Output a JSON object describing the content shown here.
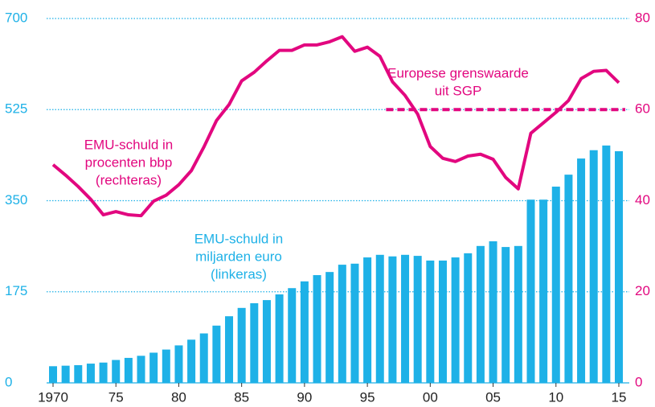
{
  "chart_data": {
    "type": "bar",
    "x": [
      1970,
      1971,
      1972,
      1973,
      1974,
      1975,
      1976,
      1977,
      1978,
      1979,
      1980,
      1981,
      1982,
      1983,
      1984,
      1985,
      1986,
      1987,
      1988,
      1989,
      1990,
      1991,
      1992,
      1993,
      1994,
      1995,
      1996,
      1997,
      1998,
      1999,
      2000,
      2001,
      2002,
      2003,
      2004,
      2005,
      2006,
      2007,
      2008,
      2009,
      2010,
      2011,
      2012,
      2013,
      2014,
      2015
    ],
    "xlim": [
      1969,
      2016
    ],
    "xticks": [
      1970,
      {
        "value": 1975,
        "label": "75"
      },
      {
        "value": 1980,
        "label": "80"
      },
      {
        "value": 1985,
        "label": "85"
      },
      {
        "value": 1990,
        "label": "90"
      },
      {
        "value": 1995,
        "label": "95"
      },
      {
        "value": 2000,
        "label": "00"
      },
      {
        "value": 2005,
        "label": "05"
      },
      {
        "value": 2010,
        "label": "10"
      },
      {
        "value": 2015,
        "label": "15"
      }
    ],
    "ylim": [
      0,
      700
    ],
    "yticks": [
      0,
      175,
      350,
      525,
      700
    ],
    "y2lim": [
      0,
      80
    ],
    "y2ticks": [
      0,
      20,
      40,
      60,
      80
    ],
    "grid": true,
    "series": [
      {
        "type": "bar",
        "color": "#1eb1e7",
        "axis": "y",
        "values": [
          32,
          33,
          34,
          37,
          39,
          44,
          48,
          52,
          58,
          64,
          72,
          83,
          95,
          110,
          128,
          144,
          153,
          159,
          170,
          182,
          195,
          207,
          213,
          227,
          229,
          241,
          246,
          243,
          246,
          244,
          235,
          235,
          241,
          249,
          263,
          272,
          261,
          263,
          352,
          352,
          377,
          400,
          431,
          447,
          456,
          445
        ]
      },
      {
        "type": "line",
        "color": "#e2077f",
        "axis": "y2",
        "values": [
          47.9,
          45.6,
          43.1,
          40.3,
          36.9,
          37.6,
          36.9,
          36.7,
          39.9,
          41.2,
          43.5,
          46.6,
          51.8,
          57.6,
          61.1,
          66.3,
          68.2,
          70.7,
          73.0,
          73.0,
          74.2,
          74.2,
          74.9,
          76.0,
          72.8,
          73.7,
          71.7,
          66.1,
          63.1,
          59.0,
          51.9,
          49.3,
          48.6,
          49.8,
          50.2,
          49.1,
          45.1,
          42.6,
          54.8,
          57.1,
          59.4,
          62.0,
          66.8,
          68.4,
          68.6,
          65.9
        ]
      }
    ],
    "reference_line": {
      "value": 60,
      "axis": "y2",
      "from": 1997,
      "to": 2015,
      "color": "#e2077f"
    },
    "annotations": [
      {
        "lines": [
          "EMU-schuld in",
          "procenten bbp",
          "(rechteras)"
        ],
        "color": "#e2077f"
      },
      {
        "lines": [
          "EMU-schuld in",
          "miljarden euro",
          "(linkeras)"
        ],
        "color": "#1eb1e7"
      },
      {
        "lines": [
          "Europese grenswaarde",
          "uit SGP"
        ],
        "color": "#e2077f"
      }
    ]
  }
}
